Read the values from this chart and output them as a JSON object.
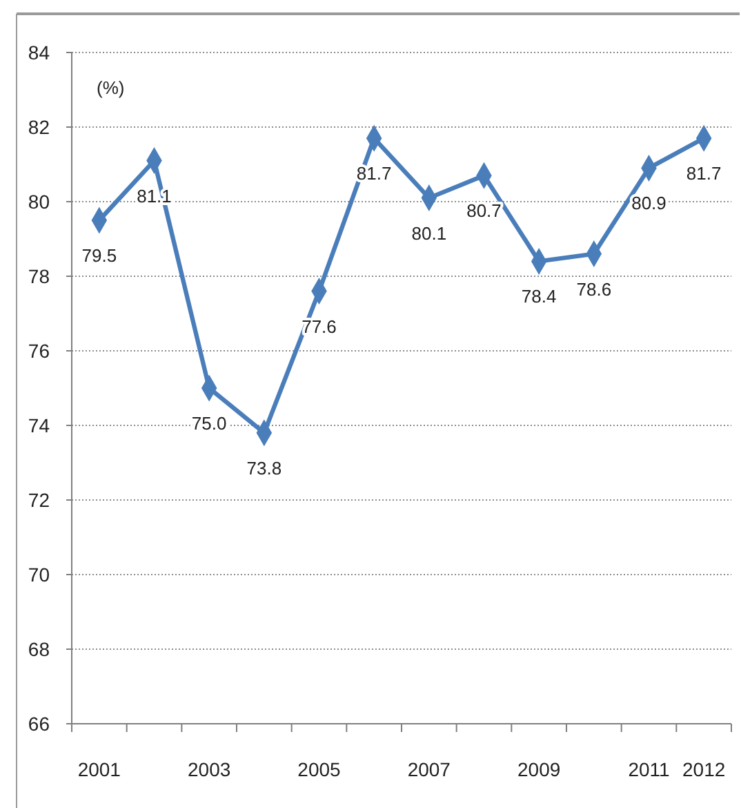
{
  "chart_data": {
    "type": "line",
    "ylabel": "(%)",
    "categories": [
      "2001",
      null,
      "2003",
      null,
      "2005",
      null,
      "2007",
      null,
      "2009",
      null,
      "2011",
      "2012"
    ],
    "series": [
      {
        "color": "#4a7ebb",
        "values": [
          79.5,
          81.1,
          75.0,
          73.8,
          77.6,
          81.7,
          80.1,
          80.7,
          78.4,
          78.6,
          80.9,
          81.7
        ],
        "value_labels": [
          "79.5",
          "81.1",
          "75.0",
          "73.8",
          "77.6",
          "81.7",
          "80.1",
          "80.7",
          "78.4",
          "78.6",
          "80.9",
          "81.7"
        ]
      }
    ],
    "ylim": [
      66,
      84
    ],
    "yticks": [
      66,
      68,
      70,
      72,
      74,
      76,
      78,
      80,
      82,
      84
    ],
    "grid": "y",
    "marker": "diamond",
    "line_style": "solid"
  }
}
